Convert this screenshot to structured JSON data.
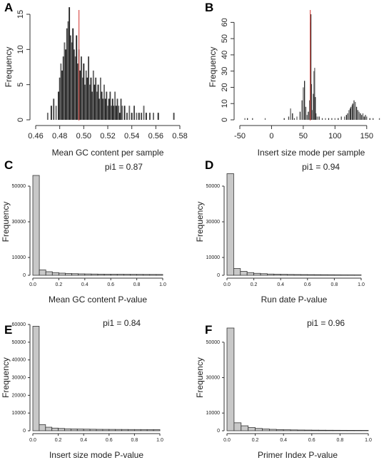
{
  "chart_data": [
    {
      "panel": "A",
      "type": "bar",
      "ylabel": "Frequency",
      "xlabel": "Mean GC content per sample",
      "xlim": [
        0.46,
        0.58
      ],
      "ylim": [
        0,
        15
      ],
      "xticks": [
        "0.46",
        "0.48",
        "0.50",
        "0.52",
        "0.54",
        "0.56",
        "0.58"
      ],
      "yticks": [
        "0",
        "5",
        "10",
        "15"
      ],
      "vline": 0.496,
      "bins": [
        [
          0.47,
          1
        ],
        [
          0.473,
          2
        ],
        [
          0.475,
          3
        ],
        [
          0.477,
          2
        ],
        [
          0.479,
          4
        ],
        [
          0.48,
          6
        ],
        [
          0.481,
          8
        ],
        [
          0.482,
          7
        ],
        [
          0.483,
          9
        ],
        [
          0.484,
          11
        ],
        [
          0.485,
          10
        ],
        [
          0.486,
          13
        ],
        [
          0.487,
          14
        ],
        [
          0.488,
          16
        ],
        [
          0.489,
          12
        ],
        [
          0.49,
          11
        ],
        [
          0.491,
          13
        ],
        [
          0.492,
          10
        ],
        [
          0.493,
          9
        ],
        [
          0.494,
          12
        ],
        [
          0.495,
          8
        ],
        [
          0.496,
          10
        ],
        [
          0.497,
          7
        ],
        [
          0.498,
          9
        ],
        [
          0.499,
          6
        ],
        [
          0.5,
          8
        ],
        [
          0.501,
          5
        ],
        [
          0.502,
          7
        ],
        [
          0.503,
          6
        ],
        [
          0.504,
          9
        ],
        [
          0.505,
          5
        ],
        [
          0.506,
          6
        ],
        [
          0.507,
          4
        ],
        [
          0.508,
          7
        ],
        [
          0.509,
          5
        ],
        [
          0.51,
          6
        ],
        [
          0.511,
          4
        ],
        [
          0.512,
          5
        ],
        [
          0.513,
          3
        ],
        [
          0.514,
          6
        ],
        [
          0.515,
          4
        ],
        [
          0.516,
          3
        ],
        [
          0.517,
          5
        ],
        [
          0.518,
          3
        ],
        [
          0.519,
          4
        ],
        [
          0.52,
          2
        ],
        [
          0.521,
          3
        ],
        [
          0.522,
          4
        ],
        [
          0.523,
          2
        ],
        [
          0.524,
          3
        ],
        [
          0.525,
          2
        ],
        [
          0.526,
          4
        ],
        [
          0.527,
          2
        ],
        [
          0.528,
          3
        ],
        [
          0.529,
          2
        ],
        [
          0.53,
          1
        ],
        [
          0.531,
          3
        ],
        [
          0.532,
          2
        ],
        [
          0.534,
          2
        ],
        [
          0.536,
          1
        ],
        [
          0.538,
          2
        ],
        [
          0.54,
          1
        ],
        [
          0.542,
          2
        ],
        [
          0.544,
          1
        ],
        [
          0.546,
          1
        ],
        [
          0.548,
          1
        ],
        [
          0.55,
          2
        ],
        [
          0.552,
          1
        ],
        [
          0.555,
          1
        ],
        [
          0.558,
          1
        ],
        [
          0.562,
          1
        ],
        [
          0.575,
          1
        ]
      ]
    },
    {
      "panel": "B",
      "type": "bar",
      "ylabel": "Frequency",
      "xlabel": "Insert size mode per sample",
      "xlim": [
        -50,
        175
      ],
      "ylim": [
        0,
        65
      ],
      "xticks": [
        "-50",
        "0",
        "50",
        "100",
        "150"
      ],
      "xtick_values": [
        -50,
        0,
        50,
        100,
        150
      ],
      "yticks": [
        "0",
        "10",
        "20",
        "30",
        "40",
        "50",
        "60"
      ],
      "vline": 61,
      "bins": [
        [
          -42,
          1
        ],
        [
          -38,
          1
        ],
        [
          -30,
          1
        ],
        [
          -10,
          1
        ],
        [
          20,
          1
        ],
        [
          27,
          2
        ],
        [
          30,
          7
        ],
        [
          33,
          4
        ],
        [
          36,
          1
        ],
        [
          40,
          2
        ],
        [
          45,
          5
        ],
        [
          48,
          12
        ],
        [
          50,
          20
        ],
        [
          52,
          24
        ],
        [
          54,
          8
        ],
        [
          56,
          3
        ],
        [
          58,
          5
        ],
        [
          60,
          12
        ],
        [
          61,
          60
        ],
        [
          62,
          65
        ],
        [
          63,
          22
        ],
        [
          64,
          6
        ],
        [
          66,
          16
        ],
        [
          67,
          30
        ],
        [
          68,
          32
        ],
        [
          69,
          14
        ],
        [
          70,
          4
        ],
        [
          72,
          2
        ],
        [
          75,
          2
        ],
        [
          80,
          1
        ],
        [
          85,
          1
        ],
        [
          90,
          1
        ],
        [
          95,
          1
        ],
        [
          100,
          1
        ],
        [
          105,
          1
        ],
        [
          110,
          2
        ],
        [
          115,
          2
        ],
        [
          118,
          3
        ],
        [
          120,
          4
        ],
        [
          122,
          6
        ],
        [
          124,
          7
        ],
        [
          125,
          8
        ],
        [
          127,
          9
        ],
        [
          128,
          10
        ],
        [
          130,
          12
        ],
        [
          132,
          11
        ],
        [
          134,
          8
        ],
        [
          136,
          6
        ],
        [
          138,
          5
        ],
        [
          140,
          4
        ],
        [
          142,
          3
        ],
        [
          144,
          4
        ],
        [
          146,
          2
        ],
        [
          148,
          3
        ],
        [
          150,
          2
        ],
        [
          155,
          1
        ],
        [
          160,
          1
        ],
        [
          170,
          1
        ]
      ]
    },
    {
      "panel": "C",
      "type": "bar",
      "annotation": "pi1 = 0.87",
      "ylabel": "Frequency",
      "xlabel": "Mean GC content P-value",
      "xlim": [
        0,
        1
      ],
      "ylim": [
        0,
        60000
      ],
      "xticks": [
        "0.0",
        "0.2",
        "0.4",
        "0.6",
        "0.8",
        "1.0"
      ],
      "yticks": [
        "0",
        "10000",
        "30000",
        "50000"
      ],
      "ytick_values": [
        0,
        10000,
        30000,
        50000
      ],
      "bin_width": 0.05,
      "values": [
        56000,
        3000,
        2000,
        1500,
        1200,
        1000,
        900,
        800,
        750,
        700,
        650,
        600,
        580,
        560,
        540,
        520,
        500,
        480,
        470,
        460
      ]
    },
    {
      "panel": "D",
      "type": "bar",
      "annotation": "pi1 = 0.94",
      "ylabel": "Frequency",
      "xlabel": "Run date P-value",
      "xlim": [
        0,
        1
      ],
      "ylim": [
        0,
        60000
      ],
      "xticks": [
        "0.0",
        "0.2",
        "0.4",
        "0.6",
        "0.8",
        "1.0"
      ],
      "yticks": [
        "0",
        "10000",
        "30000",
        "50000"
      ],
      "ytick_values": [
        0,
        10000,
        30000,
        50000
      ],
      "bin_width": 0.05,
      "values": [
        57000,
        3800,
        2200,
        1500,
        1100,
        900,
        700,
        600,
        520,
        460,
        420,
        380,
        350,
        320,
        300,
        280,
        260,
        240,
        230,
        220
      ]
    },
    {
      "panel": "E",
      "type": "bar",
      "annotation": "pi1 = 0.84",
      "ylabel": "Frequency",
      "xlabel": "Insert size mode P-value",
      "xlim": [
        0,
        1
      ],
      "ylim": [
        0,
        60000
      ],
      "xticks": [
        "0.0",
        "0.2",
        "0.4",
        "0.6",
        "0.8",
        "1.0"
      ],
      "yticks": [
        "0",
        "10000",
        "20000",
        "30000",
        "40000",
        "50000",
        "60000"
      ],
      "ytick_values": [
        0,
        10000,
        20000,
        30000,
        40000,
        50000,
        60000
      ],
      "bin_width": 0.05,
      "values": [
        59000,
        3500,
        2000,
        1500,
        1300,
        1100,
        1000,
        950,
        900,
        850,
        800,
        780,
        760,
        740,
        720,
        700,
        690,
        680,
        670,
        660
      ]
    },
    {
      "panel": "F",
      "type": "bar",
      "annotation": "pi1 = 0.96",
      "ylabel": "Frequency",
      "xlabel": "Primer Index P-value",
      "xlim": [
        0,
        1
      ],
      "ylim": [
        0,
        60000
      ],
      "xticks": [
        "0.0",
        "0.2",
        "0.4",
        "0.6",
        "0.8",
        "1.0"
      ],
      "yticks": [
        "0",
        "10000",
        "30000",
        "50000"
      ],
      "ytick_values": [
        0,
        10000,
        30000,
        50000
      ],
      "bin_width": 0.05,
      "values": [
        58000,
        4500,
        2800,
        1800,
        1300,
        1000,
        800,
        650,
        550,
        480,
        420,
        380,
        340,
        310,
        290,
        270,
        250,
        240,
        230,
        220
      ]
    }
  ]
}
